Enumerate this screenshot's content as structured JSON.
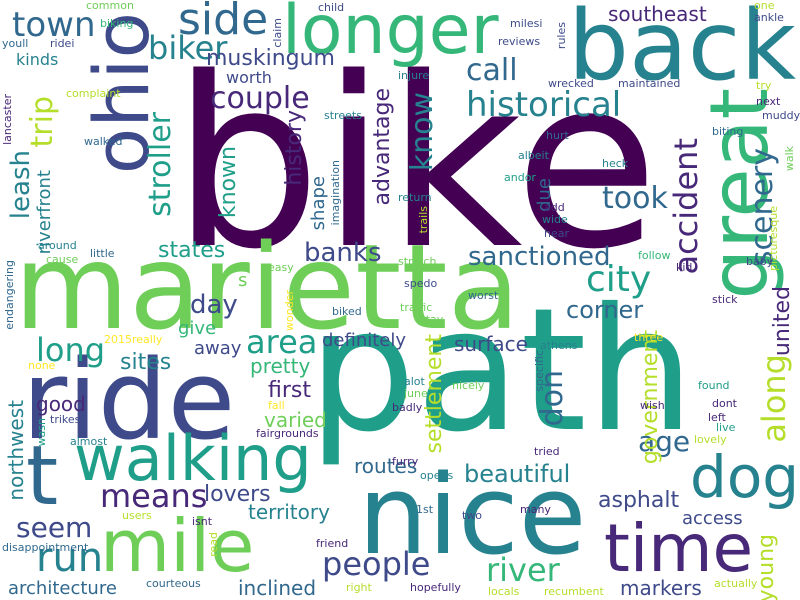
{
  "palette": {
    "c0": "#440154",
    "c1": "#482878",
    "c2": "#3e4a89",
    "c3": "#31688e",
    "c4": "#26828e",
    "c5": "#1f9e89",
    "c6": "#35b779",
    "c7": "#6ece58",
    "c8": "#b5de2b",
    "c9": "#fde725"
  },
  "words": [
    {
      "text": "bike",
      "color": "c0"
    },
    {
      "text": "path",
      "color": "c5"
    },
    {
      "text": "marietta",
      "color": "c7"
    },
    {
      "text": "ride",
      "color": "c2"
    },
    {
      "text": "back",
      "color": "c4"
    },
    {
      "text": "nice",
      "color": "c4"
    },
    {
      "text": "longer",
      "color": "c6"
    },
    {
      "text": "great",
      "color": "c6"
    },
    {
      "text": "ohio",
      "color": "c2"
    },
    {
      "text": "mile",
      "color": "c7"
    },
    {
      "text": "walking",
      "color": "c5"
    },
    {
      "text": "time",
      "color": "c1"
    },
    {
      "text": "dog",
      "color": "c4"
    },
    {
      "text": "t",
      "color": "c3"
    },
    {
      "text": "side",
      "color": "c3"
    },
    {
      "text": "biker",
      "color": "c4"
    },
    {
      "text": "town",
      "color": "c3"
    },
    {
      "text": "trip",
      "color": "c8"
    },
    {
      "text": "couple",
      "color": "c1"
    },
    {
      "text": "historical",
      "color": "c4"
    },
    {
      "text": "muskingum",
      "color": "c2"
    },
    {
      "text": "call",
      "color": "c3"
    },
    {
      "text": "southeast",
      "color": "c1"
    },
    {
      "text": "kinds",
      "color": "c4"
    },
    {
      "text": "stroller",
      "color": "c5"
    },
    {
      "text": "leash",
      "color": "c4"
    },
    {
      "text": "know",
      "color": "c4"
    },
    {
      "text": "advantage",
      "color": "c1"
    },
    {
      "text": "history",
      "color": "c1"
    },
    {
      "text": "shape",
      "color": "c3"
    },
    {
      "text": "known",
      "color": "c5"
    },
    {
      "text": "accident",
      "color": "c1"
    },
    {
      "text": "scenery",
      "color": "c3"
    },
    {
      "text": "took",
      "color": "c3"
    },
    {
      "text": "don",
      "color": "c3"
    },
    {
      "text": "due",
      "color": "c3"
    },
    {
      "text": "city",
      "color": "c5"
    },
    {
      "text": "along",
      "color": "c8"
    },
    {
      "text": "united",
      "color": "c1"
    },
    {
      "text": "sanctioned",
      "color": "c3"
    },
    {
      "text": "banks",
      "color": "c2"
    },
    {
      "text": "states",
      "color": "c5"
    },
    {
      "text": "day",
      "color": "c2"
    },
    {
      "text": "area",
      "color": "c5"
    },
    {
      "text": "long",
      "color": "c5"
    },
    {
      "text": "give",
      "color": "c6"
    },
    {
      "text": "sites",
      "color": "c4"
    },
    {
      "text": "away",
      "color": "c2"
    },
    {
      "text": "pretty",
      "color": "c6"
    },
    {
      "text": "corner",
      "color": "c3"
    },
    {
      "text": "definitely",
      "color": "c2"
    },
    {
      "text": "settlement",
      "color": "c8"
    },
    {
      "text": "surface",
      "color": "c2"
    },
    {
      "text": "first",
      "color": "c1"
    },
    {
      "text": "varied",
      "color": "c7"
    },
    {
      "text": "good",
      "color": "c1"
    },
    {
      "text": "northwest",
      "color": "c4"
    },
    {
      "text": "routes",
      "color": "c3"
    },
    {
      "text": "beautiful",
      "color": "c4"
    },
    {
      "text": "age",
      "color": "c3"
    },
    {
      "text": "government",
      "color": "c8"
    },
    {
      "text": "means",
      "color": "c1"
    },
    {
      "text": "lovers",
      "color": "c2"
    },
    {
      "text": "territory",
      "color": "c4"
    },
    {
      "text": "seem",
      "color": "c2"
    },
    {
      "text": "run",
      "color": "c4"
    },
    {
      "text": "people",
      "color": "c2"
    },
    {
      "text": "river",
      "color": "c6"
    },
    {
      "text": "asphalt",
      "color": "c2"
    },
    {
      "text": "access",
      "color": "c2"
    },
    {
      "text": "young",
      "color": "c8"
    },
    {
      "text": "markers",
      "color": "c2"
    },
    {
      "text": "architecture",
      "color": "c3"
    },
    {
      "text": "inclined",
      "color": "c3"
    },
    {
      "text": "riverfront",
      "color": "c4"
    },
    {
      "text": "worth",
      "color": "c2"
    },
    {
      "text": "common",
      "color": "c7"
    },
    {
      "text": "biking",
      "color": "c6"
    },
    {
      "text": "child",
      "color": "c2"
    },
    {
      "text": "claim",
      "color": "c2"
    },
    {
      "text": "milesi",
      "color": "c2"
    },
    {
      "text": "reviews",
      "color": "c2"
    },
    {
      "text": "rules",
      "color": "c2"
    },
    {
      "text": "one",
      "color": "c8"
    },
    {
      "text": "ankle",
      "color": "c2"
    },
    {
      "text": "youll",
      "color": "c3"
    },
    {
      "text": "ridei",
      "color": "c2"
    },
    {
      "text": "complaint",
      "color": "c8"
    },
    {
      "text": "lancaster",
      "color": "c1"
    },
    {
      "text": "walked",
      "color": "c3"
    },
    {
      "text": "streets",
      "color": "c4"
    },
    {
      "text": "injure",
      "color": "c4"
    },
    {
      "text": "wrecked",
      "color": "c2"
    },
    {
      "text": "maintained",
      "color": "c2"
    },
    {
      "text": "try",
      "color": "c8"
    },
    {
      "text": "next",
      "color": "c1"
    },
    {
      "text": "muddy",
      "color": "c2"
    },
    {
      "text": "biting",
      "color": "c3"
    },
    {
      "text": "hurt",
      "color": "c3"
    },
    {
      "text": "albeit",
      "color": "c4"
    },
    {
      "text": "heck",
      "color": "c4"
    },
    {
      "text": "andor",
      "color": "c5"
    },
    {
      "text": "imagination",
      "color": "c3"
    },
    {
      "text": "return",
      "color": "c4"
    },
    {
      "text": "picturesque",
      "color": "c8"
    },
    {
      "text": "walk",
      "color": "c7"
    },
    {
      "text": "add",
      "color": "c1"
    },
    {
      "text": "wide",
      "color": "c4"
    },
    {
      "text": "hear",
      "color": "c2"
    },
    {
      "text": "trails",
      "color": "c8"
    },
    {
      "text": "around",
      "color": "c4"
    },
    {
      "text": "little",
      "color": "c3"
    },
    {
      "text": "cause",
      "color": "c7"
    },
    {
      "text": "s",
      "color": "c7"
    },
    {
      "text": "easy",
      "color": "c7"
    },
    {
      "text": "stretch",
      "color": "c7"
    },
    {
      "text": "follow",
      "color": "c6"
    },
    {
      "text": "kid",
      "color": "c1"
    },
    {
      "text": "baby",
      "color": "c2"
    },
    {
      "text": "endangering",
      "color": "c3"
    },
    {
      "text": "wonder",
      "color": "c9"
    },
    {
      "text": "spedo",
      "color": "c2"
    },
    {
      "text": "traffic",
      "color": "c7"
    },
    {
      "text": "stay",
      "color": "c7"
    },
    {
      "text": "worst",
      "color": "c3"
    },
    {
      "text": "stick",
      "color": "c1"
    },
    {
      "text": "biked",
      "color": "c3"
    },
    {
      "text": "three",
      "color": "c9"
    },
    {
      "text": "2015really",
      "color": "c9"
    },
    {
      "text": "none",
      "color": "c9"
    },
    {
      "text": "athens",
      "color": "c4"
    },
    {
      "text": "alot",
      "color": "c4"
    },
    {
      "text": "june",
      "color": "c7"
    },
    {
      "text": "specific",
      "color": "c3"
    },
    {
      "text": "found",
      "color": "c5"
    },
    {
      "text": "fall",
      "color": "c9"
    },
    {
      "text": "badly",
      "color": "c1"
    },
    {
      "text": "nicely",
      "color": "c7"
    },
    {
      "text": "wish",
      "color": "c1"
    },
    {
      "text": "dont",
      "color": "c1"
    },
    {
      "text": "left",
      "color": "c1"
    },
    {
      "text": "live",
      "color": "c5"
    },
    {
      "text": "lovely",
      "color": "c8"
    },
    {
      "text": "trikes",
      "color": "c2"
    },
    {
      "text": "wasn",
      "color": "c5"
    },
    {
      "text": "almost",
      "color": "c4"
    },
    {
      "text": "fairgrounds",
      "color": "c1"
    },
    {
      "text": "tried",
      "color": "c1"
    },
    {
      "text": "furry",
      "color": "c1"
    },
    {
      "text": "opens",
      "color": "c4"
    },
    {
      "text": "users",
      "color": "c8"
    },
    {
      "text": "isnt",
      "color": "c1"
    },
    {
      "text": "disappointment",
      "color": "c3"
    },
    {
      "text": "read",
      "color": "c8"
    },
    {
      "text": "friend",
      "color": "c1"
    },
    {
      "text": "1st",
      "color": "c3"
    },
    {
      "text": "two",
      "color": "c2"
    },
    {
      "text": "many",
      "color": "c1"
    },
    {
      "text": "courteous",
      "color": "c3"
    },
    {
      "text": "right",
      "color": "c8"
    },
    {
      "text": "hopefully",
      "color": "c1"
    },
    {
      "text": "locals",
      "color": "c8"
    },
    {
      "text": "recumbent",
      "color": "c8"
    },
    {
      "text": "actually",
      "color": "c8"
    }
  ]
}
